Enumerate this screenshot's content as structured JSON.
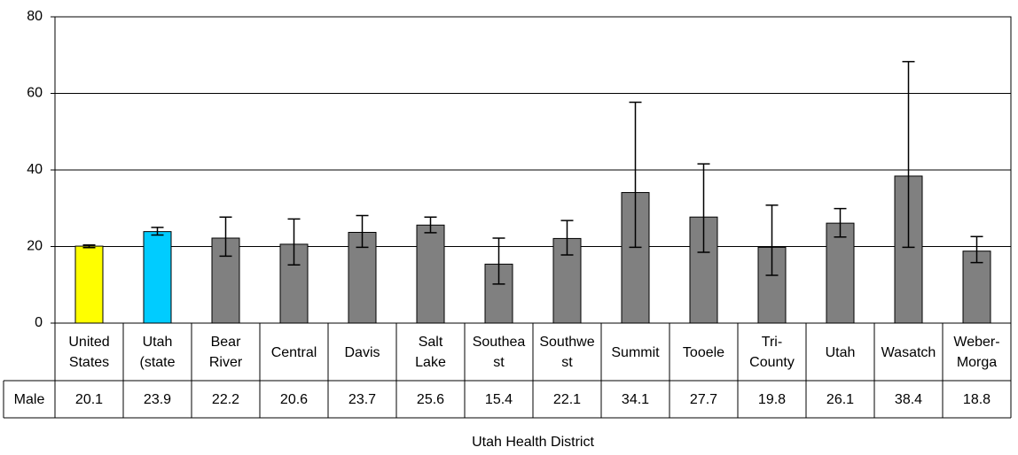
{
  "chart_data": {
    "type": "bar",
    "categories": [
      "United States",
      "Utah (state",
      "Bear River",
      "Central",
      "Davis",
      "Salt Lake",
      "Southeast",
      "Southwest",
      "Summit",
      "Tooele",
      "Tri-County",
      "Utah",
      "Wasatch",
      "Weber-Morga"
    ],
    "series": [
      {
        "name": "Male",
        "colors": [
          "#ffff00",
          "#00ccff",
          "#808080",
          "#808080",
          "#808080",
          "#808080",
          "#808080",
          "#808080",
          "#808080",
          "#808080",
          "#808080",
          "#808080",
          "#808080",
          "#808080"
        ],
        "values": [
          20.1,
          23.9,
          22.2,
          20.6,
          23.7,
          25.6,
          15.4,
          22.1,
          34.1,
          27.7,
          19.8,
          26.1,
          38.4,
          18.8
        ],
        "ci_low": [
          19.7,
          23.0,
          17.5,
          15.2,
          19.8,
          23.6,
          10.2,
          17.8,
          19.8,
          18.5,
          12.5,
          22.5,
          19.8,
          15.8
        ],
        "ci_high": [
          20.4,
          25.0,
          27.7,
          27.2,
          28.1,
          27.7,
          22.2,
          26.8,
          57.7,
          41.6,
          30.8,
          29.9,
          68.3,
          22.6
        ]
      }
    ],
    "ylim": [
      0,
      80
    ],
    "yticks": [
      0,
      20,
      40,
      60,
      80
    ],
    "grid": true,
    "xlabel": "Utah Health District"
  }
}
